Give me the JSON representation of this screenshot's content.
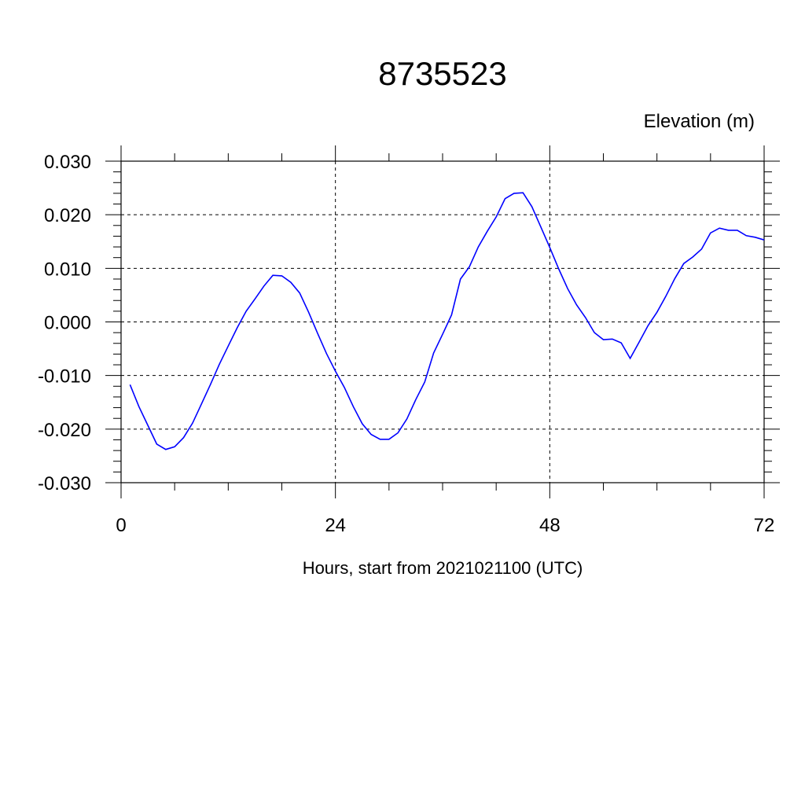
{
  "chart_data": {
    "type": "line",
    "title": "8735523",
    "ylabel": "Elevation (m)",
    "xlabel": "Hours, start from 2021021100 (UTC)",
    "xlim": [
      0,
      72
    ],
    "ylim": [
      -0.03,
      0.03
    ],
    "x_ticks": [
      0,
      24,
      48,
      72
    ],
    "x_tick_labels": [
      "0",
      "24",
      "48",
      "72"
    ],
    "y_ticks": [
      -0.03,
      -0.02,
      -0.01,
      0.0,
      0.01,
      0.02,
      0.03
    ],
    "y_tick_labels": [
      "-0.030",
      "-0.020",
      "-0.010",
      "0.000",
      "0.010",
      "0.020",
      "0.030"
    ],
    "grid": true,
    "line_color": "#0000ff",
    "series": [
      {
        "x": [
          1,
          2,
          3,
          4,
          5,
          6,
          7,
          8,
          9,
          10,
          11,
          12,
          13,
          14,
          15,
          16,
          17,
          18,
          19,
          20,
          21,
          22,
          23,
          24,
          25,
          26,
          27,
          28,
          29,
          30,
          31,
          32,
          33,
          34,
          35,
          36,
          37,
          38,
          39,
          40,
          41,
          42,
          43,
          44,
          45,
          46,
          47,
          48,
          49,
          50,
          51,
          52,
          53,
          54,
          55,
          56,
          57,
          58,
          59,
          60,
          61,
          62,
          63,
          64,
          65,
          66,
          67,
          68,
          69,
          70,
          71,
          72
        ],
        "values": [
          -0.0117,
          -0.0158,
          -0.0193,
          -0.0228,
          -0.0238,
          -0.0233,
          -0.0216,
          -0.0189,
          -0.0153,
          -0.0117,
          -0.0079,
          -0.0045,
          -0.0011,
          0.002,
          0.0043,
          0.0067,
          0.0087,
          0.0086,
          0.0074,
          0.0054,
          0.0018,
          -0.0021,
          -0.0059,
          -0.0092,
          -0.0122,
          -0.0158,
          -0.019,
          -0.021,
          -0.0219,
          -0.0219,
          -0.0207,
          -0.0181,
          -0.0145,
          -0.0112,
          -0.0058,
          -0.0023,
          0.0013,
          0.008,
          0.0103,
          0.014,
          0.0169,
          0.0196,
          0.023,
          0.024,
          0.0241,
          0.0215,
          0.0177,
          0.0139,
          0.0099,
          0.0062,
          0.0032,
          0.0008,
          -0.002,
          -0.0033,
          -0.0032,
          -0.0039,
          -0.0068,
          -0.0038,
          -0.0007,
          0.0018,
          0.0048,
          0.0081,
          0.0109,
          0.0121,
          0.0136,
          0.0166,
          0.0175,
          0.0171,
          0.0171,
          0.0161,
          0.0158,
          0.0153
        ]
      }
    ]
  }
}
